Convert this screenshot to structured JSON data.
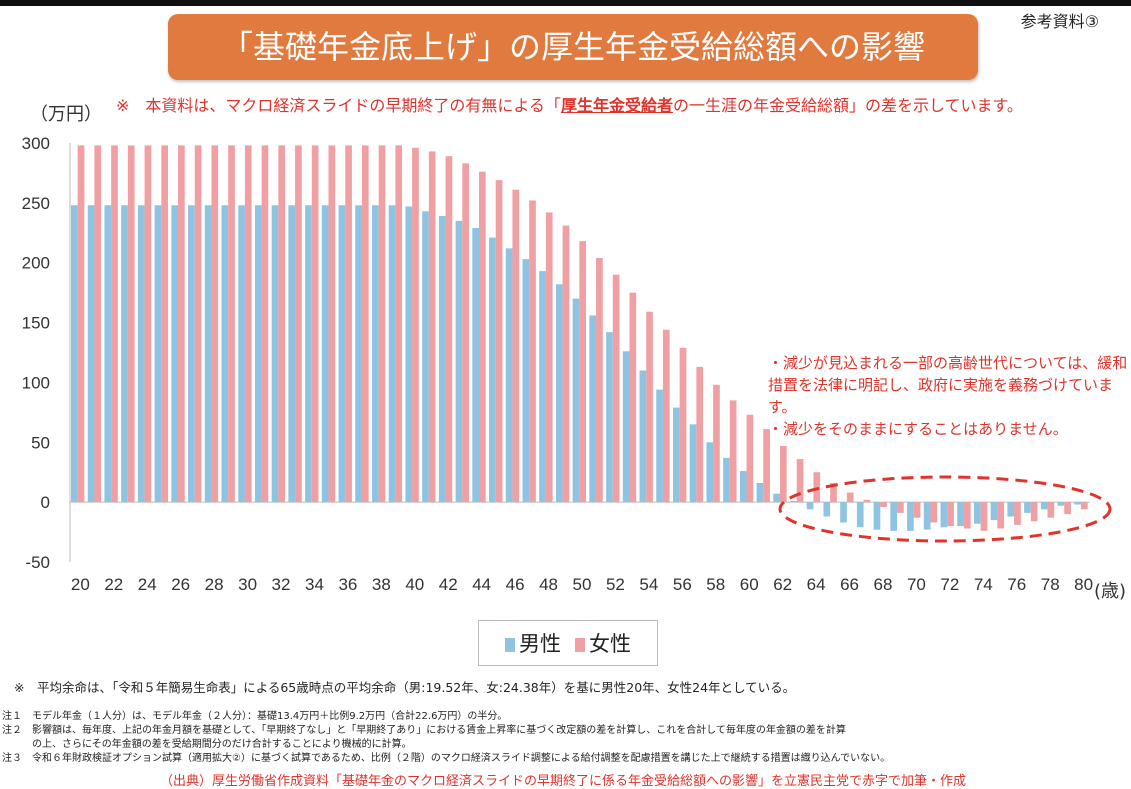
{
  "ref_label": "参考資料③",
  "title": "「基礎年金底上げ」の厚生年金受給総額への影響",
  "note_top": {
    "prefix": "※　本資料は、マクロ経済スライドの早期終了の有無による「",
    "emph": "厚生年金受給者",
    "suffix": "の一生涯の年金受給総額」の差を示しています。"
  },
  "callout": [
    "・減少が見込まれる一部の高齢世代については、緩和措置を法律に明記し、政府に実施を義務づけています。",
    "・減少をそのままにすることはありません。"
  ],
  "footnote_main": "※　平均余命は、「令和５年簡易生命表」による65歳時点の平均余命（男:19.52年、女:24.38年）を基に男性20年、女性24年としている。",
  "footnotes": [
    "注１　モデル年金（１人分）は、モデル年金（２人分）：基礎13.4万円＋比例9.2万円（合計22.6万円）の半分。",
    "注２　影響額は、毎年度、上記の年金月額を基礎として、「早期終了なし」と「早期終了あり」における賃金上昇率に基づく改定額の差を計算し、これを合計して毎年度の年金額の差を計算",
    "　　　の上、さらにその年金額の差を受給期間分のだけ合計することにより機械的に計算。",
    "注３　令和６年財政検証オプション試算（適用拡大②）に基づく試算であるため、比例（２階）のマクロ経済スライド調整による給付調整を配慮措置を講じた上で継続する措置は織り込んでいない。"
  ],
  "source": "（出典）厚生労働省作成資料「基礎年金のマクロ経済スライドの早期終了に係る年金受給総額への影響」を立憲民主党で赤字で加筆・作成",
  "colors": {
    "male": "#8fc3e2",
    "female": "#f0a0a2",
    "title_bg": "#e07a3e",
    "accent_red": "#e0332b"
  },
  "chart_data": {
    "type": "bar",
    "ylabel": "（万円）",
    "xlabel": "(歳)",
    "ylim": [
      -50,
      300
    ],
    "yticks": [
      300,
      250,
      200,
      150,
      100,
      50,
      0,
      -50
    ],
    "grid": false,
    "legend_position": "bottom-center",
    "categories": [
      20,
      21,
      22,
      23,
      24,
      25,
      26,
      27,
      28,
      29,
      30,
      31,
      32,
      33,
      34,
      35,
      36,
      37,
      38,
      39,
      40,
      41,
      42,
      43,
      44,
      45,
      46,
      47,
      48,
      49,
      50,
      51,
      52,
      53,
      54,
      55,
      56,
      57,
      58,
      59,
      60,
      61,
      62,
      63,
      64,
      65,
      66,
      67,
      68,
      69,
      70,
      71,
      72,
      73,
      74,
      75,
      76,
      77,
      78,
      79,
      80
    ],
    "tick_labels": [
      "20",
      "22",
      "24",
      "26",
      "28",
      "30",
      "32",
      "34",
      "36",
      "38",
      "40",
      "42",
      "44",
      "46",
      "48",
      "50",
      "52",
      "54",
      "56",
      "58",
      "60",
      "62",
      "64",
      "66",
      "68",
      "70",
      "72",
      "74",
      "76",
      "78",
      "80"
    ],
    "series": [
      {
        "name": "男性",
        "color": "#8fc3e2",
        "values": [
          248,
          248,
          248,
          248,
          248,
          248,
          248,
          248,
          248,
          248,
          248,
          248,
          248,
          248,
          248,
          248,
          248,
          248,
          248,
          248,
          247,
          243,
          239,
          235,
          229,
          221,
          212,
          203,
          193,
          182,
          170,
          156,
          142,
          126,
          110,
          94,
          79,
          65,
          50,
          37,
          26,
          16,
          7,
          1,
          -6,
          -12,
          -17,
          -21,
          -23,
          -24,
          -24,
          -23,
          -21,
          -20,
          -18,
          -15,
          -12,
          -9,
          -6,
          -3,
          -2
        ]
      },
      {
        "name": "女性",
        "color": "#f0a0a2",
        "values": [
          298,
          298,
          298,
          298,
          298,
          298,
          298,
          298,
          298,
          298,
          298,
          298,
          298,
          298,
          298,
          298,
          298,
          298,
          298,
          298,
          296,
          293,
          289,
          283,
          276,
          269,
          261,
          252,
          242,
          231,
          218,
          204,
          190,
          175,
          159,
          144,
          129,
          113,
          98,
          85,
          73,
          61,
          47,
          36,
          25,
          16,
          8,
          2,
          -4,
          -9,
          -13,
          -17,
          -20,
          -22,
          -24,
          -22,
          -19,
          -16,
          -13,
          -10,
          -6
        ]
      }
    ]
  }
}
